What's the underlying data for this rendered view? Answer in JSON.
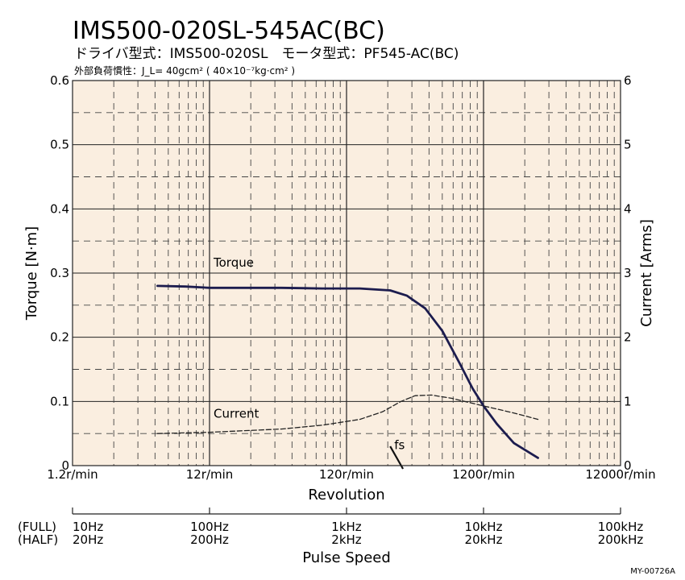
{
  "chart_data": {
    "type": "line",
    "title": "IMS500-020SL-545AC(BC)",
    "subtitle": "ドライバ型式：IMS500-020SL　モータ型式：PF545-AC(BC)",
    "note": "外部負荷慣性：J_L= 40gcm² ( 40×10⁻⁷kg·cm² )",
    "xlabel": "Revolution",
    "ylabel_left": "Torque [N·m]",
    "ylabel_right": "Current [Arms]",
    "x_scale": "log",
    "xlim": [
      1.2,
      12000
    ],
    "ylim_left": [
      0,
      0.6
    ],
    "ylim_right": [
      0,
      6
    ],
    "x_ticks": [
      "1.2r/min",
      "12r/min",
      "120r/min",
      "1200r/min",
      "12000r/min"
    ],
    "y_ticks_left": [
      "0",
      "0.1",
      "0.2",
      "0.3",
      "0.4",
      "0.5",
      "0.6"
    ],
    "y_ticks_right": [
      "0",
      "1",
      "2",
      "3",
      "4",
      "5",
      "6"
    ],
    "grid": true,
    "secondary_axis": {
      "label": "Pulse Speed",
      "rows": [
        "(FULL)",
        "(HALF)"
      ],
      "ticks": [
        {
          "full": "10Hz",
          "half": "20Hz"
        },
        {
          "full": "100Hz",
          "half": "200Hz"
        },
        {
          "full": "1kHz",
          "half": "2kHz"
        },
        {
          "full": "10kHz",
          "half": "20kHz"
        },
        {
          "full": "100kHz",
          "half": "200kHz"
        }
      ]
    },
    "series": [
      {
        "name": "Torque",
        "axis": "left",
        "style": "solid",
        "color": "#1c1c4e",
        "x": [
          5,
          8,
          12,
          20,
          40,
          80,
          150,
          250,
          330,
          450,
          600,
          800,
          1000,
          1200,
          1500,
          2000,
          3000
        ],
        "y": [
          0.28,
          0.279,
          0.277,
          0.277,
          0.277,
          0.276,
          0.276,
          0.273,
          0.265,
          0.245,
          0.21,
          0.16,
          0.12,
          0.093,
          0.065,
          0.035,
          0.012
        ]
      },
      {
        "name": "Current",
        "axis": "right",
        "style": "dashed",
        "color": "#222222",
        "x": [
          5,
          12,
          40,
          80,
          150,
          220,
          300,
          380,
          500,
          700,
          1200,
          2000,
          3000
        ],
        "y": [
          0.5,
          0.52,
          0.57,
          0.63,
          0.72,
          0.84,
          1.0,
          1.09,
          1.1,
          1.05,
          0.93,
          0.82,
          0.72
        ]
      }
    ],
    "annotations": [
      {
        "text": "Torque",
        "x": 12,
        "y_left": 0.31
      },
      {
        "text": "Current",
        "x": 12,
        "y_left": 0.075
      },
      {
        "text": "fs",
        "x": 250,
        "y_left": 0.026
      }
    ],
    "fs_marker": {
      "x": [
        250,
        310
      ],
      "y_left": [
        0.03,
        -0.005
      ]
    }
  },
  "figure_code": "MY-00726A",
  "colors": {
    "plot_background": "#faeee0",
    "frame": "#222222",
    "grid_major": "#222222",
    "grid_minor": "#444444"
  }
}
